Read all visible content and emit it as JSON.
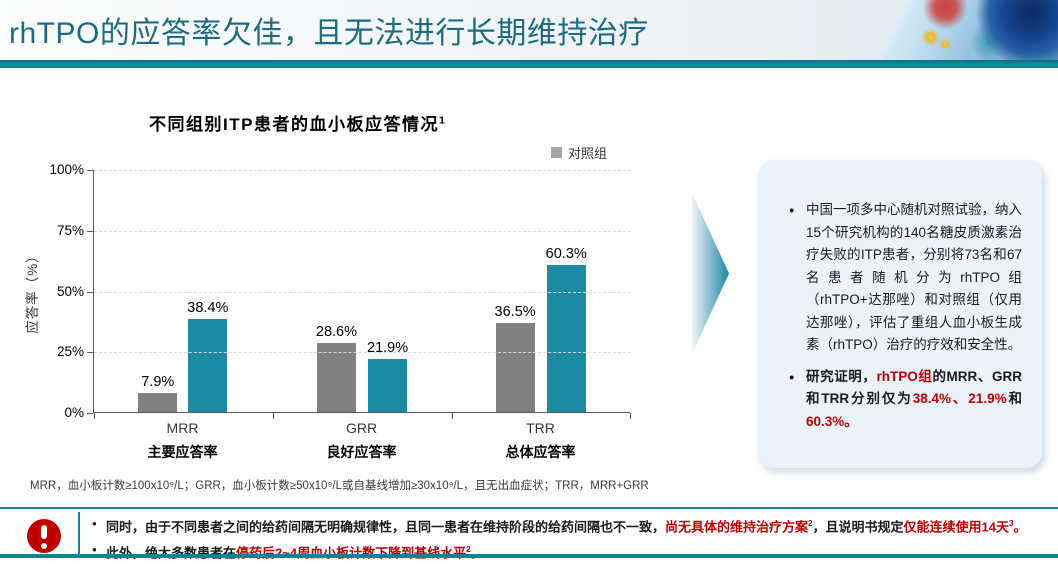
{
  "slide": {
    "title": "rhTPO的应答率欠佳，且无法进行长期维持治疗"
  },
  "chart": {
    "title_segments": [
      {
        "text": "不同组别ITP患者的血小板应答情况"
      },
      {
        "text": "1",
        "sup": true
      }
    ],
    "legend": {
      "label": "对照组",
      "color": "#A6A6A6"
    },
    "ylabel": "应答率（%）",
    "footnote": "MRR，血小板计数≥100x10⁹/L；GRR，血小板计数≥50x10⁹/L或自基线增加≥30x10⁹/L，且无出血症状；TRR，MRR+GRR"
  },
  "chart_data": {
    "type": "bar",
    "title": "不同组别ITP患者的血小板应答情况1",
    "categories": [
      "MRR",
      "GRR",
      "TRR"
    ],
    "category_labels": [
      "主要应答率",
      "良好应答率",
      "总体应答率"
    ],
    "series": [
      {
        "name": "对照组",
        "color": "#808080",
        "values": [
          7.9,
          28.6,
          36.5
        ]
      },
      {
        "name": "rhTPO组",
        "color": "#1B8AA2",
        "values": [
          38.4,
          21.9,
          60.3
        ]
      }
    ],
    "value_suffix": "%",
    "data_labels": [
      [
        "7.9%",
        "28.6%",
        "36.5%"
      ],
      [
        "38.4%",
        "21.9%",
        "60.3%"
      ]
    ],
    "xlabel": "",
    "ylabel": "应答率（%）",
    "ylim": [
      0,
      100
    ],
    "yticks": [
      0,
      25,
      50,
      75,
      100
    ],
    "ytick_suffix": "%",
    "grid": "dashed-horizontal",
    "legend_position": "top-right",
    "legend_visible_entries": [
      "对照组"
    ]
  },
  "callout": {
    "bullets": [
      {
        "bold": false,
        "segments": [
          {
            "text": "中国一项多中心随机对照试验，纳入15个研究机构的140名糖皮质激素治疗失败的ITP患者，分别将73名和67名患者随机分为rhTPO组（rhTPO+达那唑）和对照组（仅用达那唑），评估了重组人血小板生成素（rhTPO）治疗的疗效和安全性。"
          }
        ]
      },
      {
        "bold": true,
        "segments": [
          {
            "text": "研究证明，"
          },
          {
            "text": "rhTPO组",
            "color": "#C00000"
          },
          {
            "text": "的MRR、GRR和TRR分别仅为"
          },
          {
            "text": "38.4%、21.9%",
            "color": "#C00000"
          },
          {
            "text": "和"
          },
          {
            "text": "60.3%。",
            "color": "#C00000"
          }
        ]
      }
    ]
  },
  "footer": {
    "notes": [
      {
        "segments": [
          {
            "text": "同时，由于不同患者之间的给药间隔无明确规律性，且同一患者在维持阶段的给药间隔也不一致，"
          },
          {
            "text": "尚无具体的维持治疗方案",
            "color": "#C00000"
          },
          {
            "text": "2",
            "color": "#C00000",
            "sup": true
          },
          {
            "text": "，且说明书规定",
            "color": "#1a1a1a"
          },
          {
            "text": "仅能连续使用14天",
            "color": "#C00000"
          },
          {
            "text": "3",
            "color": "#C00000",
            "sup": true
          },
          {
            "text": "。",
            "color": "#C00000"
          }
        ]
      },
      {
        "segments": [
          {
            "text": "此外，绝大多数患者在"
          },
          {
            "text": "停药后2~4周血小板计数下降到基线水平",
            "color": "#C00000"
          },
          {
            "text": "2",
            "color": "#C00000",
            "sup": true
          },
          {
            "text": "。",
            "color": "#C00000"
          }
        ]
      }
    ]
  },
  "colors": {
    "accent_teal": "#0F8495",
    "bar_teal": "#1B8AA2",
    "bar_gray": "#808080",
    "alert_red": "#C00000",
    "title_teal": "#1D6B80",
    "callout_bg": "#EAF3FA"
  }
}
